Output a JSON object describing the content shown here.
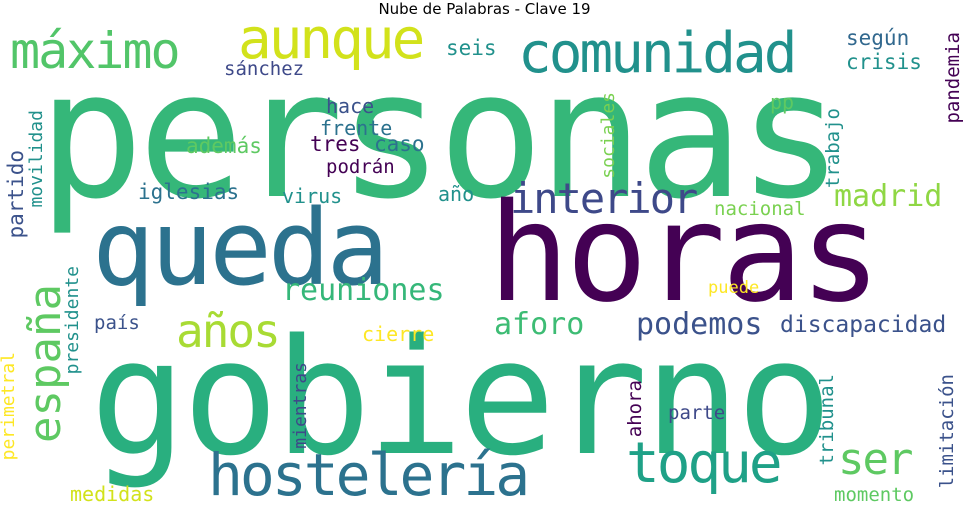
{
  "title": "Nube de Palabras - Clave 19",
  "colors": {
    "dark_purple": "#440154",
    "purple": "#472d7b",
    "indigo": "#3b528b",
    "blue": "#2c728e",
    "teal": "#21918c",
    "green_teal": "#28ae80",
    "green": "#5ec962",
    "lime": "#addc30",
    "yellow": "#fde725"
  },
  "words": {
    "personas": "personas",
    "gobierno": "gobierno",
    "horas": "horas",
    "queda": "queda",
    "comunidad": "comunidad",
    "maximo": "máximo",
    "aunque": "aunque",
    "hosteleria": "hostelería",
    "toque": "toque",
    "espana": "españa",
    "anos": "años",
    "ser": "ser",
    "interior": "interior",
    "reuniones": "reuniones",
    "madrid": "madrid",
    "podemos": "podemos",
    "aforo": "aforo",
    "discapacidad": "discapacidad",
    "iglesias": "iglesias",
    "partido": "partido",
    "seis": "seis",
    "segun": "según",
    "crisis": "crisis",
    "pandemia": "pandemia",
    "sanchez": "sánchez",
    "hace": "hace",
    "frente": "frente",
    "pp": "pp",
    "trabajo": "trabajo",
    "sociales": "sociales",
    "tres": "tres",
    "caso": "caso",
    "ademas": "además",
    "podran": "podrán",
    "movilidad": "movilidad",
    "virus": "virus",
    "ano": "año",
    "nacional": "nacional",
    "presidente": "presidente",
    "puede": "puede",
    "pais": "país",
    "cierre": "cierre",
    "perimetral": "perimetral",
    "mientras": "mientras",
    "ahora": "ahora",
    "tribunal": "tribunal",
    "limitacion": "limitación",
    "parte": "parte",
    "medidas": "medidas",
    "momento": "momento"
  }
}
